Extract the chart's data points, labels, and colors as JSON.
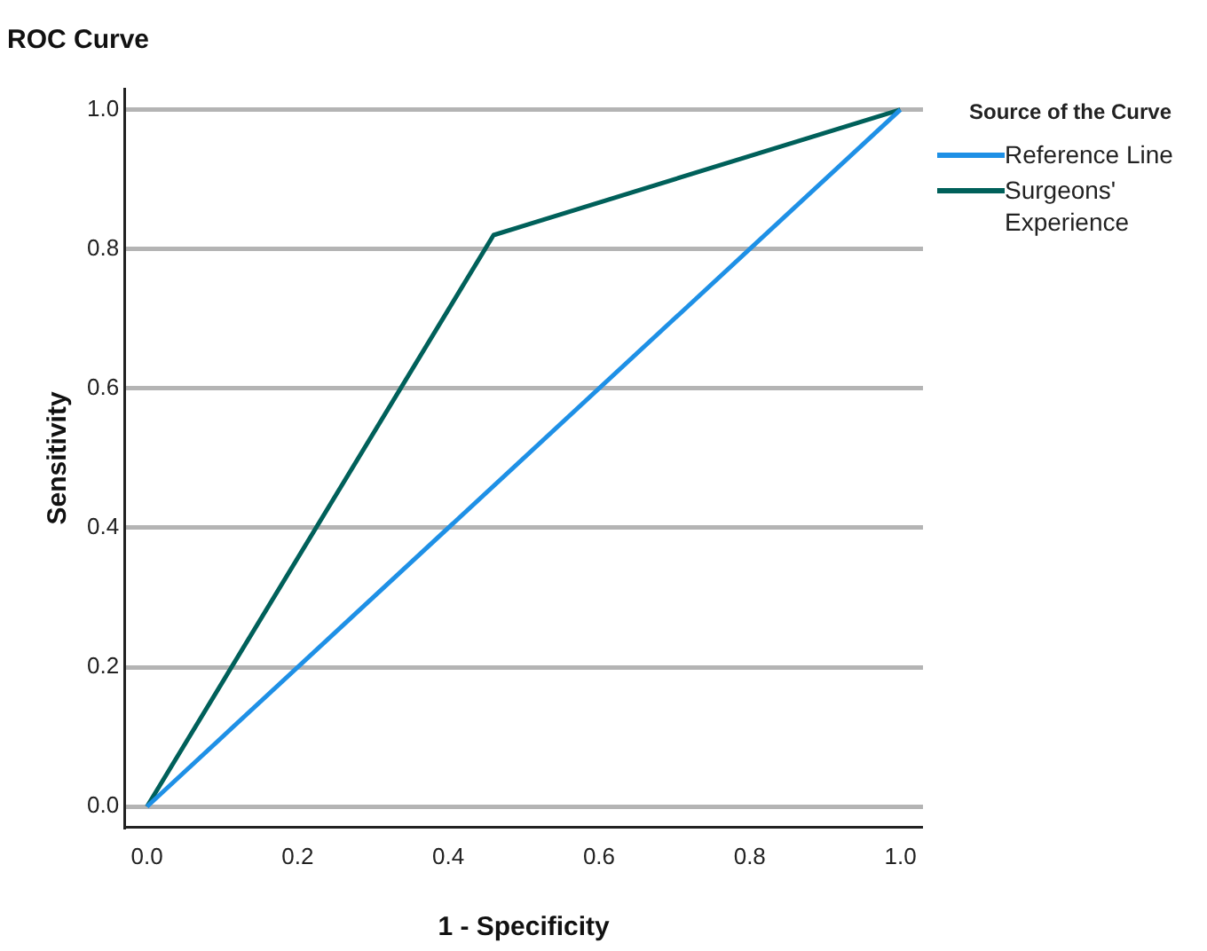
{
  "chart_data": {
    "type": "line",
    "title": "ROC Curve",
    "xlabel": "1 - Specificity",
    "ylabel": "Sensitivity",
    "legend_title": "Source of the Curve",
    "legend": "right",
    "grid": "y",
    "marker": "none",
    "line_style": "solid",
    "xlim": [
      -0.03,
      1.03
    ],
    "ylim": [
      -0.03,
      1.03
    ],
    "xticks": [
      {
        "value": 0,
        "label": "0.0"
      },
      {
        "value": 0.2,
        "label": "0.2"
      },
      {
        "value": 0.4,
        "label": "0.4"
      },
      {
        "value": 0.6,
        "label": "0.6"
      },
      {
        "value": 0.8,
        "label": "0.8"
      },
      {
        "value": 1,
        "label": "1.0"
      }
    ],
    "yticks": [
      {
        "value": 0,
        "label": "0.0"
      },
      {
        "value": 0.2,
        "label": "0.2"
      },
      {
        "value": 0.4,
        "label": "0.4"
      },
      {
        "value": 0.6,
        "label": "0.6"
      },
      {
        "value": 0.8,
        "label": "0.8"
      },
      {
        "value": 1,
        "label": "1.0"
      }
    ],
    "series": [
      {
        "name": "Reference Line",
        "color": "#1e90e6",
        "x": [
          0,
          1
        ],
        "values": [
          0,
          1
        ]
      },
      {
        "name": "Surgeons' Experience",
        "color": "#00605a",
        "x": [
          0,
          0.46,
          1
        ],
        "values": [
          0,
          0.82,
          1
        ]
      }
    ]
  }
}
